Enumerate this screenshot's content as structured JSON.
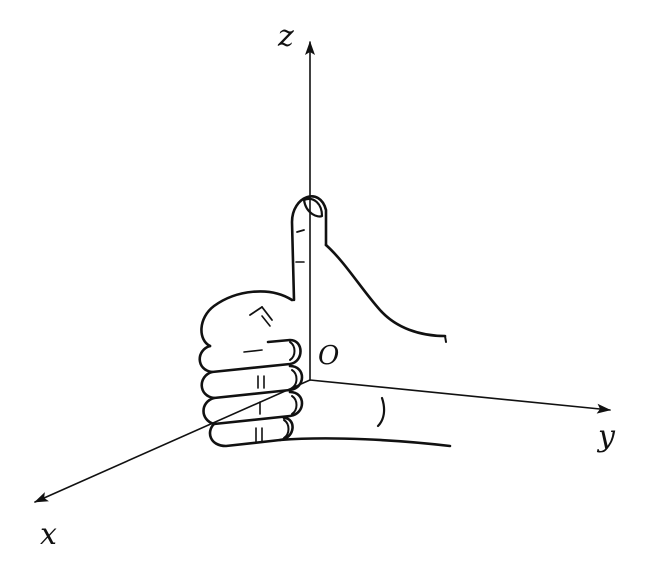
{
  "figure": {
    "axes": {
      "x": {
        "label": "x"
      },
      "y": {
        "label": "y"
      },
      "z": {
        "label": "z"
      }
    },
    "origin_label": "O"
  },
  "colors": {
    "ink": "#111111",
    "background": "#ffffff"
  },
  "icons": {
    "hand": "right-hand-thumb-up-icon"
  }
}
